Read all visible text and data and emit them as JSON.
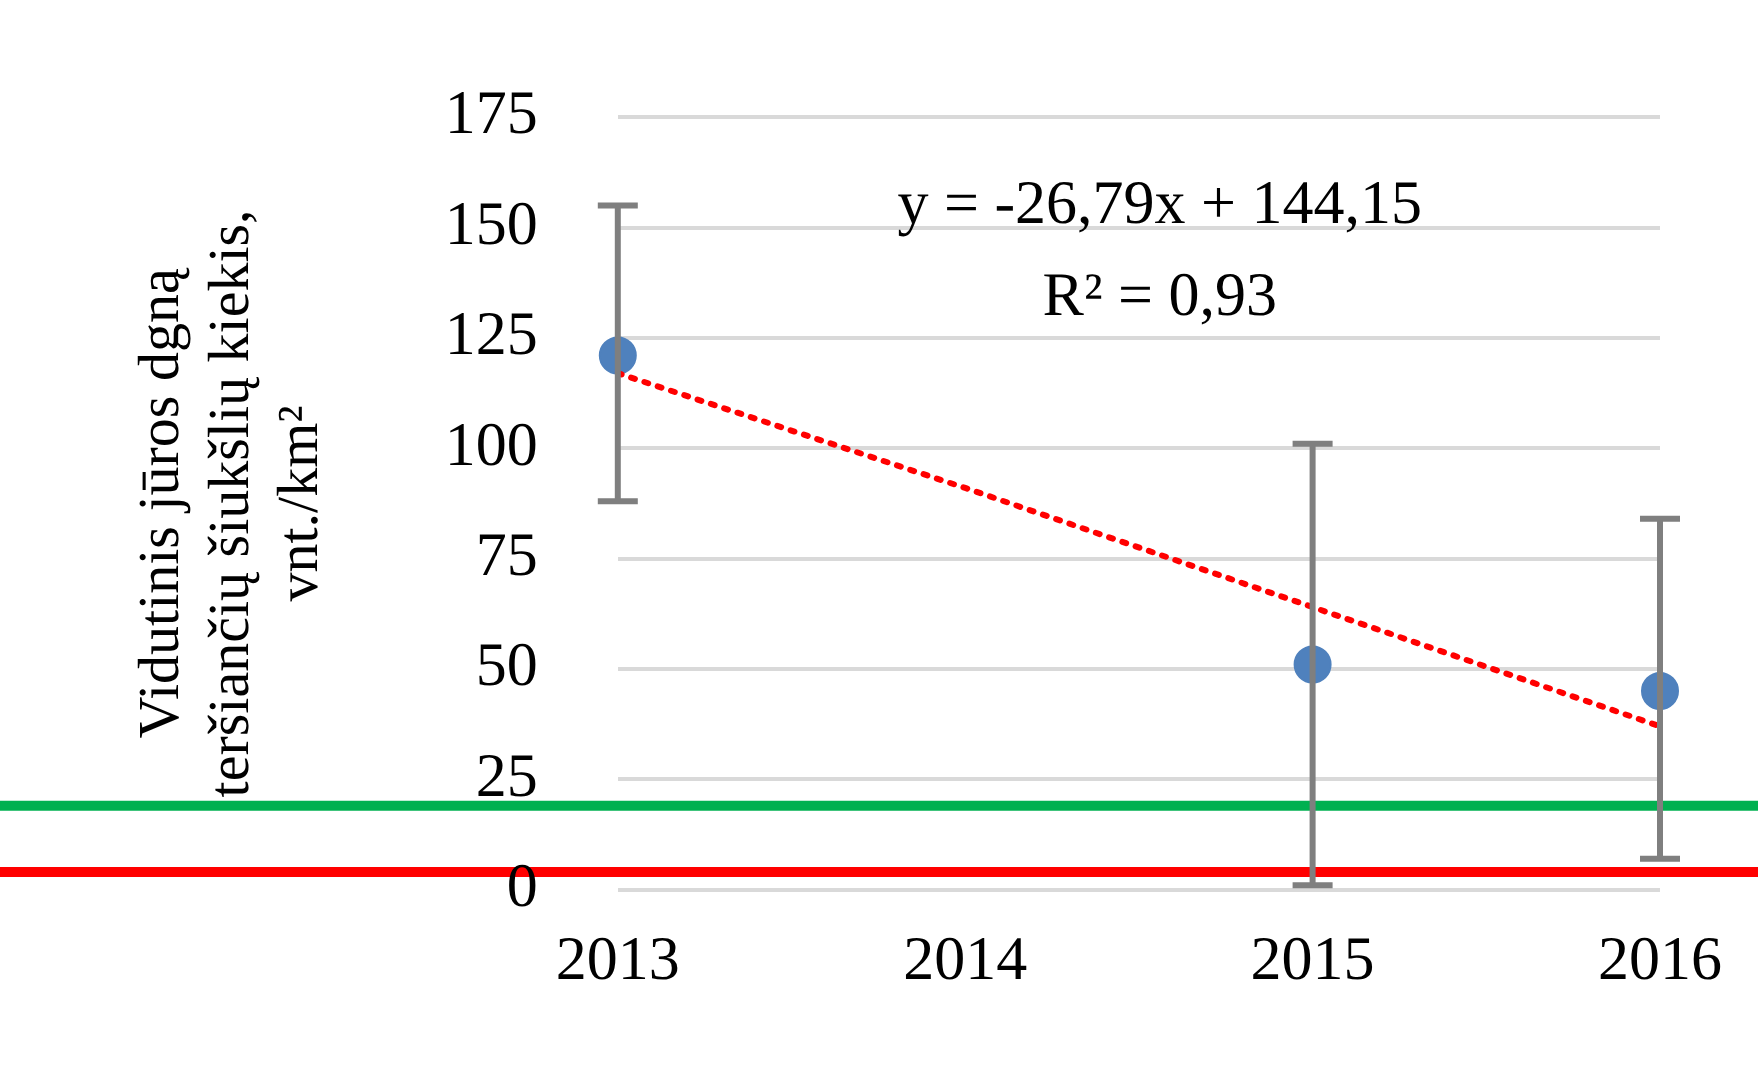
{
  "chart_data": {
    "type": "scatter",
    "ylabel": "Vidutinis jūros dgną\nteršiančių šiukšlių kiekis,\nvnt./km²",
    "categories": [
      "2013",
      "2014",
      "2015",
      "2016"
    ],
    "series": [
      {
        "color": "#4f81bd",
        "values": [
          121,
          null,
          51,
          45
        ],
        "errors": [
          [
            88,
            155
          ],
          null,
          [
            1,
            101
          ],
          [
            7,
            84
          ]
        ],
        "marker": "circle"
      },
      {
        "type": "line",
        "color": "#ff0000",
        "values": [
          117,
          91,
          64,
          37
        ],
        "marker": "none",
        "line_style": "dotted"
      }
    ],
    "ylim": [
      0,
      175
    ],
    "yticks": [
      0,
      25,
      50,
      75,
      100,
      125,
      150,
      175
    ],
    "grid": "y",
    "legend": false,
    "annotations": [
      "y = -26,79x + 144,15",
      "R² = 0,93"
    ],
    "ref_lines": [
      {
        "axis": "y",
        "value": 19,
        "color": "#00b050"
      },
      {
        "axis": "y",
        "value": 4,
        "color": "#ff0000"
      }
    ]
  }
}
